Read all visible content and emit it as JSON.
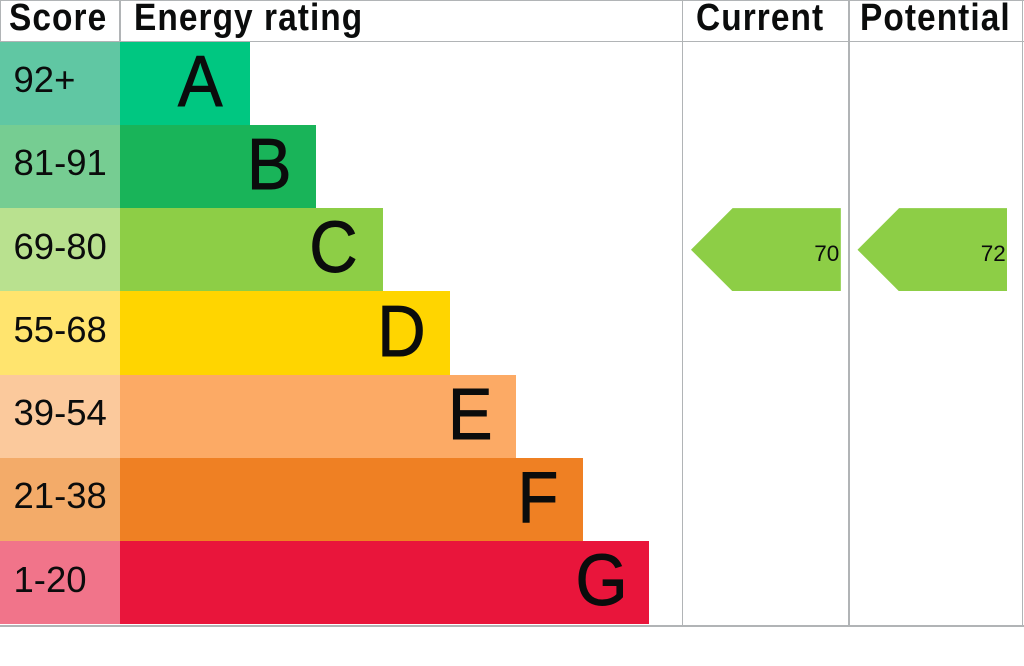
{
  "chart_data": {
    "type": "bar",
    "title": "Energy rating",
    "columns": {
      "score": "Score",
      "rating": "Energy rating",
      "current": "Current",
      "potential": "Potential"
    },
    "categories": [
      "A",
      "B",
      "C",
      "D",
      "E",
      "F",
      "G"
    ],
    "score_ranges": [
      "92+",
      "81-91",
      "69-80",
      "55-68",
      "39-54",
      "21-38",
      "1-20"
    ],
    "values": [
      78,
      118,
      158,
      198,
      238,
      278,
      318
    ],
    "bands": [
      {
        "letter": "A",
        "range": "92+",
        "color": "#00c781",
        "tint": "#60c7a3",
        "bar_units": 78
      },
      {
        "letter": "B",
        "range": "81-91",
        "color": "#19b459",
        "tint": "#76cd92",
        "bar_units": 118
      },
      {
        "letter": "C",
        "range": "69-80",
        "color": "#8dce46",
        "tint": "#b9e18f",
        "bar_units": 158
      },
      {
        "letter": "D",
        "range": "55-68",
        "color": "#ffd500",
        "tint": "#ffe46e",
        "bar_units": 198
      },
      {
        "letter": "E",
        "range": "39-54",
        "color": "#fcaa65",
        "tint": "#fbc99c",
        "bar_units": 238
      },
      {
        "letter": "F",
        "range": "21-38",
        "color": "#ef8023",
        "tint": "#f3ab69",
        "bar_units": 278
      },
      {
        "letter": "G",
        "range": "1-20",
        "color": "#e9153b",
        "tint": "#f1748a",
        "bar_units": 318
      }
    ],
    "current": {
      "value": "70",
      "band": "C"
    },
    "potential": {
      "value": "72",
      "band": "C"
    },
    "legend_position": "none",
    "grid": "column-dividers"
  },
  "colors": {
    "grid_line": "#b1b4b6",
    "text": "#0b0c0c",
    "background": "#ffffff"
  }
}
